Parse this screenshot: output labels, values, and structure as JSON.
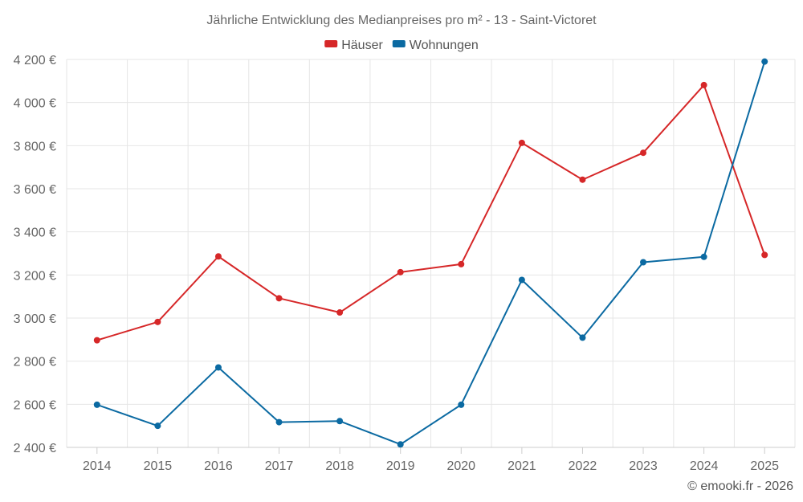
{
  "chart_data": {
    "type": "line",
    "title": "Jährliche Entwicklung des Medianpreises pro m² - 13 - Saint-Victoret",
    "categories": [
      "2014",
      "2015",
      "2016",
      "2017",
      "2018",
      "2019",
      "2020",
      "2021",
      "2022",
      "2023",
      "2024",
      "2025"
    ],
    "series": [
      {
        "name": "Häuser",
        "color": "#d62728",
        "values": [
          2897,
          2982,
          3286,
          3092,
          3026,
          3213,
          3250,
          3813,
          3642,
          3767,
          4081,
          3293
        ]
      },
      {
        "name": "Wohnungen",
        "color": "#0b6aa2",
        "values": [
          2598,
          2500,
          2771,
          2517,
          2522,
          2414,
          2598,
          3177,
          2909,
          3259,
          3284,
          4190
        ]
      }
    ],
    "y_ticks": [
      "2 400 €",
      "2 600 €",
      "2 800 €",
      "3 000 €",
      "3 200 €",
      "3 400 €",
      "3 600 €",
      "3 800 €",
      "4 000 €",
      "4 200 €"
    ],
    "ylim": [
      2400,
      4200
    ],
    "xlabel": "",
    "ylabel": "",
    "legend_position": "top-center",
    "grid": true,
    "credit": "© emooki.fr - 2026"
  }
}
